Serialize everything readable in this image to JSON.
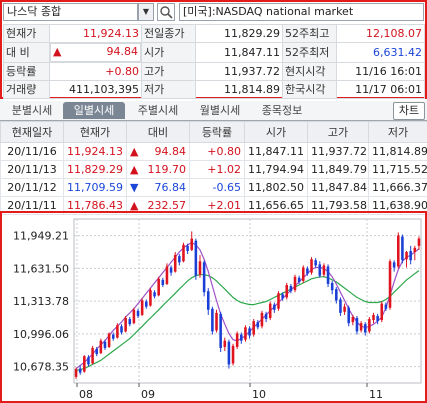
{
  "header": {
    "index_name": "나스닥 종합",
    "market_name": "[미국]:NASDAQ national market"
  },
  "quote": {
    "rows": [
      [
        {
          "label": "현재가",
          "value": "11,924.13",
          "color": "red"
        },
        {
          "label": "전일종가",
          "value": "11,829.29"
        },
        {
          "label": "52주최고",
          "value": "12,108.07",
          "color": "red"
        }
      ],
      [
        {
          "label": "대 비",
          "value": "94.84",
          "color": "red",
          "arrow": "▲"
        },
        {
          "label": "시가",
          "value": "11,847.11"
        },
        {
          "label": "52주최저",
          "value": "6,631.42",
          "color": "blue"
        }
      ],
      [
        {
          "label": "등락률",
          "value": "+0.80",
          "color": "red"
        },
        {
          "label": "고가",
          "value": "11,937.72"
        },
        {
          "label": "현지시각",
          "value": "11/16 16:01"
        }
      ],
      [
        {
          "label": "거래량",
          "value": "411,103,395"
        },
        {
          "label": "저가",
          "value": "11,814.89"
        },
        {
          "label": "한국시각",
          "value": "11/17 06:01"
        }
      ]
    ]
  },
  "tabs": {
    "items": [
      "분별시세",
      "일별시세",
      "주별시세",
      "월별시세",
      "종목정보"
    ],
    "active": "일별시세",
    "chart_button": "차트"
  },
  "history": {
    "columns": [
      "현재일자",
      "현재가",
      "대비",
      "등락률",
      "시가",
      "고가",
      "저가"
    ],
    "rows": [
      {
        "date": "20/11/16",
        "close": "11,924.13",
        "arrow": "▲",
        "change": "94.84",
        "rate": "+0.80",
        "open": "11,847.11",
        "high": "11,937.72",
        "low": "11,814.89",
        "dir": "up"
      },
      {
        "date": "20/11/13",
        "close": "11,829.29",
        "arrow": "▲",
        "change": "119.70",
        "rate": "+1.02",
        "open": "11,794.94",
        "high": "11,849.79",
        "low": "11,715.52",
        "dir": "up"
      },
      {
        "date": "20/11/12",
        "close": "11,709.59",
        "arrow": "▼",
        "change": "76.84",
        "rate": "-0.65",
        "open": "11,802.50",
        "high": "11,847.84",
        "low": "11,666.37",
        "dir": "down"
      },
      {
        "date": "20/11/11",
        "close": "11,786.43",
        "arrow": "▲",
        "change": "232.57",
        "rate": "+2.01",
        "open": "11,656.65",
        "high": "11,793.58",
        "low": "11,638.90",
        "dir": "up"
      }
    ]
  },
  "chart": {
    "y_ticks": [
      "11,949.21",
      "11,631.50",
      "11,313.78",
      "10,996.06",
      "10,678.35"
    ],
    "y_tick_values": [
      11949.21,
      11631.5,
      11313.78,
      10996.06,
      10678.35
    ],
    "x_ticks": [
      "08",
      "09",
      "10",
      "11"
    ],
    "colors": {
      "up": "#e0141e",
      "down": "#1a3fd6",
      "ma_short": "#a050c8",
      "ma_long": "#2aa84a",
      "grid": "#c9cdd2"
    }
  },
  "chart_data": {
    "type": "candlestick",
    "x_ticks": [
      "08",
      "09",
      "10",
      "11"
    ],
    "y_ticks": [
      11949.21,
      11631.5,
      11313.78,
      10996.06,
      10678.35
    ],
    "ylim": [
      10520,
      12110
    ],
    "candles": [
      [
        10580,
        10655,
        10560,
        10670
      ],
      [
        10660,
        10620,
        10600,
        10690
      ],
      [
        10630,
        10780,
        10620,
        10790
      ],
      [
        10770,
        10700,
        10680,
        10790
      ],
      [
        10710,
        10860,
        10700,
        10880
      ],
      [
        10850,
        10800,
        10780,
        10870
      ],
      [
        10810,
        10930,
        10800,
        10950
      ],
      [
        10920,
        10860,
        10840,
        10940
      ],
      [
        10870,
        11000,
        10860,
        11010
      ],
      [
        10990,
        10950,
        10930,
        11010
      ],
      [
        10960,
        11080,
        10950,
        11100
      ],
      [
        11070,
        11010,
        10990,
        11090
      ],
      [
        11020,
        11150,
        11010,
        11170
      ],
      [
        11140,
        11090,
        11070,
        11160
      ],
      [
        11100,
        11230,
        11090,
        11250
      ],
      [
        11220,
        11170,
        11150,
        11240
      ],
      [
        11180,
        11320,
        11170,
        11340
      ],
      [
        11310,
        11260,
        11240,
        11330
      ],
      [
        11270,
        11420,
        11260,
        11440
      ],
      [
        11400,
        11360,
        11340,
        11420
      ],
      [
        11370,
        11530,
        11360,
        11550
      ],
      [
        11520,
        11470,
        11450,
        11540
      ],
      [
        11480,
        11650,
        11470,
        11680
      ],
      [
        11640,
        11590,
        11560,
        11660
      ],
      [
        11600,
        11760,
        11590,
        11790
      ],
      [
        11750,
        11690,
        11660,
        11770
      ],
      [
        11700,
        11860,
        11690,
        11880
      ],
      [
        11850,
        11800,
        11770,
        11870
      ],
      [
        11810,
        11920,
        11800,
        11990
      ],
      [
        11900,
        11560,
        11520,
        11920
      ],
      [
        11570,
        11700,
        11540,
        11760
      ],
      [
        11690,
        11400,
        11360,
        11710
      ],
      [
        11410,
        11230,
        11180,
        11440
      ],
      [
        11240,
        11020,
        10990,
        11260
      ],
      [
        11030,
        11200,
        11010,
        11230
      ],
      [
        11190,
        10860,
        10820,
        11210
      ],
      [
        10870,
        10930,
        10830,
        10960
      ],
      [
        10920,
        10700,
        10660,
        10940
      ],
      [
        10710,
        10880,
        10690,
        10900
      ],
      [
        10870,
        11000,
        10850,
        11020
      ],
      [
        10990,
        10930,
        10900,
        11010
      ],
      [
        10940,
        11060,
        10920,
        11080
      ],
      [
        11050,
        10980,
        10950,
        11070
      ],
      [
        10990,
        11120,
        10970,
        11140
      ],
      [
        11110,
        11060,
        11040,
        11130
      ],
      [
        11070,
        11200,
        11050,
        11220
      ],
      [
        11190,
        11140,
        11110,
        11210
      ],
      [
        11150,
        11290,
        11130,
        11310
      ],
      [
        11280,
        11230,
        11200,
        11300
      ],
      [
        11240,
        11390,
        11220,
        11410
      ],
      [
        11380,
        11340,
        11320,
        11400
      ],
      [
        11350,
        11470,
        11330,
        11490
      ],
      [
        11460,
        11410,
        11390,
        11480
      ],
      [
        11420,
        11550,
        11400,
        11570
      ],
      [
        11540,
        11500,
        11480,
        11560
      ],
      [
        11510,
        11640,
        11490,
        11660
      ],
      [
        11630,
        11580,
        11560,
        11650
      ],
      [
        11590,
        11720,
        11570,
        11740
      ],
      [
        11710,
        11660,
        11640,
        11730
      ],
      [
        11670,
        11560,
        11540,
        11700
      ],
      [
        11570,
        11660,
        11550,
        11680
      ],
      [
        11650,
        11480,
        11450,
        11670
      ],
      [
        11490,
        11420,
        11380,
        11510
      ],
      [
        11430,
        11320,
        11290,
        11450
      ],
      [
        11330,
        11200,
        11170,
        11350
      ],
      [
        11210,
        11260,
        11180,
        11290
      ],
      [
        11250,
        11100,
        11070,
        11270
      ],
      [
        11110,
        11160,
        11080,
        11180
      ],
      [
        11150,
        11020,
        10990,
        11170
      ],
      [
        11030,
        11100,
        11010,
        11120
      ],
      [
        11090,
        11010,
        10980,
        11110
      ],
      [
        11020,
        11140,
        11000,
        11160
      ],
      [
        11130,
        11180,
        11100,
        11200
      ],
      [
        11170,
        11120,
        11090,
        11190
      ],
      [
        11130,
        11290,
        11110,
        11310
      ],
      [
        11280,
        11240,
        11220,
        11300
      ],
      [
        11250,
        11700,
        11230,
        11720
      ],
      [
        11690,
        11640,
        11600,
        11710
      ],
      [
        11650,
        11950,
        11630,
        11980
      ],
      [
        11940,
        11710,
        11680,
        11960
      ],
      [
        11720,
        11790,
        11640,
        11800
      ],
      [
        11800,
        11710,
        11670,
        11850
      ],
      [
        11790,
        11830,
        11710,
        11850
      ],
      [
        11850,
        11920,
        11810,
        11940
      ]
    ],
    "ma_short": [
      10660,
      10690,
      10720,
      10760,
      10800,
      10850,
      10890,
      10930,
      10980,
      11030,
      11070,
      11110,
      11160,
      11200,
      11240,
      11290,
      11340,
      11390,
      11440,
      11490,
      11540,
      11590,
      11640,
      11690,
      11740,
      11790,
      11830,
      11860,
      11880,
      11860,
      11810,
      11720,
      11600,
      11460,
      11320,
      11190,
      11090,
      11000,
      10940,
      10930,
      10950,
      10980,
      11020,
      11060,
      11100,
      11140,
      11180,
      11220,
      11260,
      11300,
      11340,
      11380,
      11420,
      11460,
      11500,
      11540,
      11580,
      11620,
      11640,
      11640,
      11630,
      11600,
      11550,
      11480,
      11400,
      11320,
      11240,
      11170,
      11110,
      11070,
      11060,
      11070,
      11090,
      11120,
      11160,
      11250,
      11370,
      11500,
      11620,
      11700,
      11740,
      11760,
      11790,
      11820
    ],
    "ma_long": [
      10640,
      10650,
      10660,
      10680,
      10700,
      10720,
      10740,
      10770,
      10800,
      10830,
      10860,
      10890,
      10920,
      10950,
      10990,
      11030,
      11070,
      11110,
      11150,
      11190,
      11230,
      11270,
      11310,
      11350,
      11390,
      11430,
      11470,
      11510,
      11540,
      11560,
      11570,
      11570,
      11560,
      11540,
      11510,
      11470,
      11430,
      11390,
      11350,
      11320,
      11300,
      11290,
      11280,
      11280,
      11290,
      11300,
      11310,
      11330,
      11350,
      11370,
      11390,
      11410,
      11430,
      11450,
      11470,
      11490,
      11510,
      11530,
      11540,
      11550,
      11550,
      11540,
      11520,
      11500,
      11470,
      11440,
      11410,
      11380,
      11350,
      11330,
      11310,
      11300,
      11300,
      11300,
      11310,
      11330,
      11360,
      11400,
      11440,
      11480,
      11520,
      11550,
      11580,
      11610
    ]
  }
}
